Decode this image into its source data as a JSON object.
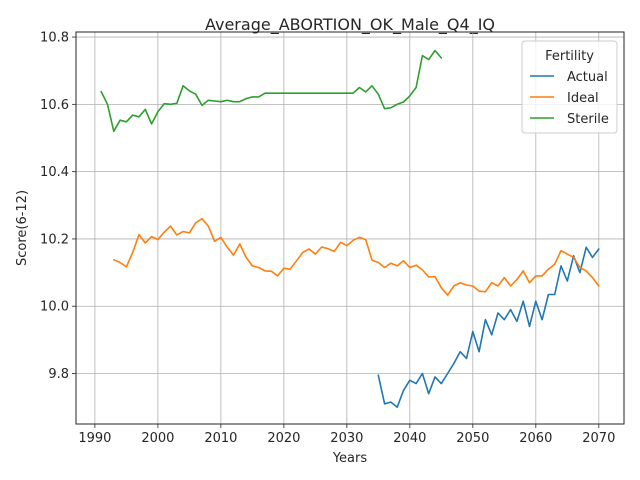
{
  "chart_data": {
    "type": "line",
    "title": "Average_ABORTION_OK_Male_Q4_IQ",
    "xlabel": "Years",
    "ylabel": "Score(6-12)",
    "xlim": [
      1987,
      2074
    ],
    "ylim": [
      9.65,
      10.815
    ],
    "xticks": [
      1990,
      2000,
      2010,
      2020,
      2030,
      2040,
      2050,
      2060,
      2070
    ],
    "xtick_labels": [
      "1990",
      "2000",
      "2010",
      "2020",
      "2030",
      "2040",
      "2050",
      "2060",
      "2070"
    ],
    "yticks": [
      9.8,
      10.0,
      10.2,
      10.4,
      10.6,
      10.8
    ],
    "ytick_labels": [
      "9.8",
      "10.0",
      "10.2",
      "10.4",
      "10.6",
      "10.8"
    ],
    "grid": true,
    "legend": {
      "title": "Fertility",
      "position": "top-right"
    },
    "series": [
      {
        "name": "Actual",
        "color": "#1f77b4",
        "x": [
          2035,
          2036,
          2037,
          2038,
          2039,
          2040,
          2041,
          2042,
          2043,
          2044,
          2045,
          2046,
          2047,
          2048,
          2049,
          2050,
          2051,
          2052,
          2053,
          2054,
          2055,
          2056,
          2057,
          2058,
          2059,
          2060,
          2061,
          2062,
          2063,
          2064,
          2065,
          2066,
          2067,
          2068,
          2069,
          2070
        ],
        "y": [
          9.795,
          9.71,
          9.715,
          9.7,
          9.75,
          9.78,
          9.77,
          9.8,
          9.74,
          9.79,
          9.77,
          9.8,
          9.83,
          9.865,
          9.845,
          9.925,
          9.865,
          9.96,
          9.915,
          9.98,
          9.96,
          9.99,
          9.955,
          10.015,
          9.94,
          10.015,
          9.96,
          10.035,
          10.035,
          10.12,
          10.075,
          10.15,
          10.1,
          10.175,
          10.145,
          10.17
        ]
      },
      {
        "name": "Ideal",
        "color": "#ff7f0e",
        "x": [
          1993,
          1994,
          1995,
          1996,
          1997,
          1998,
          1999,
          2000,
          2001,
          2002,
          2003,
          2004,
          2005,
          2006,
          2007,
          2008,
          2009,
          2010,
          2011,
          2012,
          2013,
          2014,
          2015,
          2016,
          2017,
          2018,
          2019,
          2020,
          2021,
          2022,
          2023,
          2024,
          2025,
          2026,
          2027,
          2028,
          2029,
          2030,
          2031,
          2032,
          2033,
          2034,
          2035,
          2036,
          2037,
          2038,
          2039,
          2040,
          2041,
          2042,
          2043,
          2044,
          2045,
          2046,
          2047,
          2048,
          2049,
          2050,
          2051,
          2052,
          2053,
          2054,
          2055,
          2056,
          2057,
          2058,
          2059,
          2060,
          2061,
          2062,
          2063,
          2064,
          2065,
          2066,
          2067,
          2068,
          2069,
          2070
        ],
        "y": [
          10.138,
          10.13,
          10.117,
          10.16,
          10.213,
          10.188,
          10.207,
          10.198,
          10.22,
          10.238,
          10.212,
          10.222,
          10.218,
          10.248,
          10.26,
          10.238,
          10.193,
          10.205,
          10.175,
          10.152,
          10.185,
          10.145,
          10.12,
          10.115,
          10.105,
          10.104,
          10.09,
          10.113,
          10.11,
          10.135,
          10.16,
          10.17,
          10.155,
          10.176,
          10.171,
          10.163,
          10.19,
          10.18,
          10.196,
          10.205,
          10.198,
          10.137,
          10.13,
          10.115,
          10.128,
          10.12,
          10.135,
          10.115,
          10.122,
          10.108,
          10.087,
          10.088,
          10.055,
          10.033,
          10.06,
          10.07,
          10.063,
          10.06,
          10.045,
          10.043,
          10.07,
          10.06,
          10.085,
          10.06,
          10.079,
          10.105,
          10.07,
          10.09,
          10.09,
          10.11,
          10.125,
          10.165,
          10.155,
          10.145,
          10.115,
          10.105,
          10.085,
          10.06
        ]
      },
      {
        "name": "Sterile",
        "color": "#2ca02c",
        "x": [
          1991,
          1992,
          1993,
          1994,
          1995,
          1996,
          1997,
          1998,
          1999,
          2000,
          2001,
          2002,
          2003,
          2004,
          2005,
          2006,
          2007,
          2008,
          2009,
          2010,
          2011,
          2012,
          2013,
          2014,
          2015,
          2016,
          2017,
          2018,
          2019,
          2020,
          2021,
          2022,
          2023,
          2024,
          2025,
          2026,
          2027,
          2028,
          2029,
          2030,
          2031,
          2032,
          2033,
          2034,
          2035,
          2036,
          2037,
          2038,
          2039,
          2040,
          2041,
          2042,
          2043,
          2044,
          2045
        ],
        "y": [
          10.638,
          10.6,
          10.52,
          10.553,
          10.548,
          10.568,
          10.563,
          10.585,
          10.542,
          10.578,
          10.602,
          10.6,
          10.603,
          10.655,
          10.64,
          10.63,
          10.597,
          10.612,
          10.61,
          10.608,
          10.612,
          10.608,
          10.608,
          10.617,
          10.622,
          10.622,
          10.633,
          10.633,
          10.633,
          10.633,
          10.633,
          10.633,
          10.633,
          10.633,
          10.633,
          10.633,
          10.633,
          10.633,
          10.633,
          10.633,
          10.633,
          10.65,
          10.637,
          10.655,
          10.63,
          10.587,
          10.59,
          10.6,
          10.607,
          10.625,
          10.65,
          10.745,
          10.733,
          10.76,
          10.738
        ]
      }
    ]
  }
}
